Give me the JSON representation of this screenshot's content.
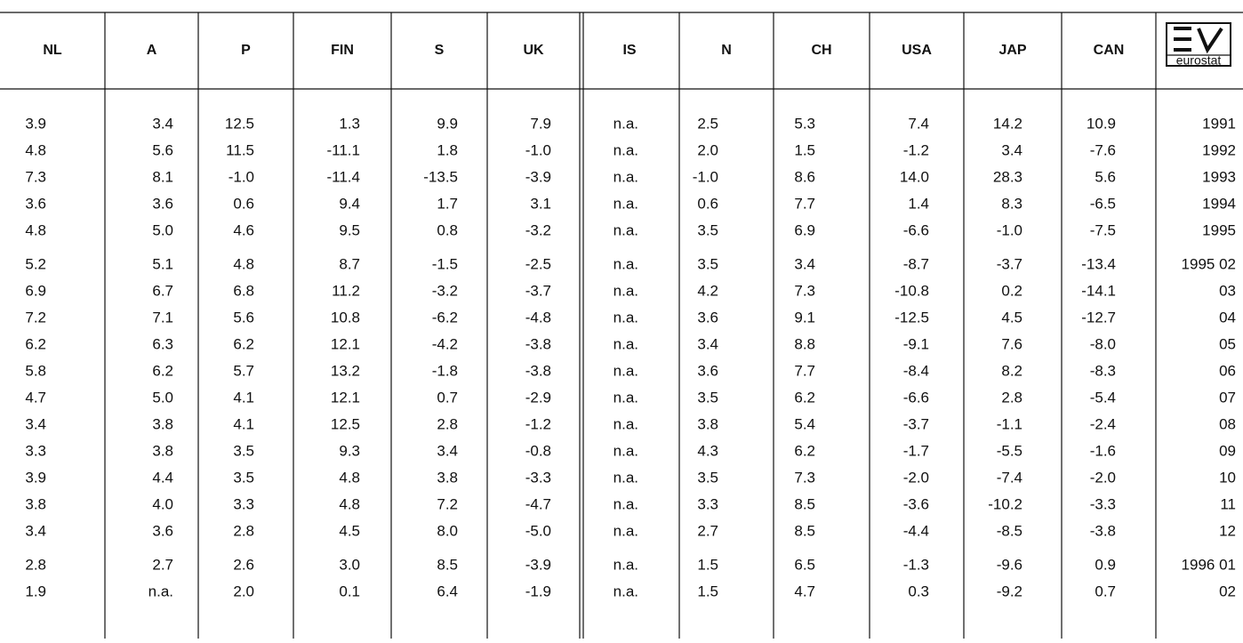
{
  "table": {
    "headers": [
      "NL",
      "A",
      "P",
      "FIN",
      "S",
      "UK",
      "IS",
      "N",
      "CH",
      "USA",
      "JAP",
      "CAN"
    ],
    "logo": "eurostat",
    "groups": [
      5,
      11,
      2
    ],
    "rows": [
      [
        "3.9",
        "3.4",
        "12.5",
        "1.3",
        "9.9",
        "7.9",
        "n.a.",
        "2.5",
        "5.3",
        "7.4",
        "14.2",
        "10.9",
        "1991"
      ],
      [
        "4.8",
        "5.6",
        "11.5",
        "-11.1",
        "1.8",
        "-1.0",
        "n.a.",
        "2.0",
        "1.5",
        "-1.2",
        "3.4",
        "-7.6",
        "1992"
      ],
      [
        "7.3",
        "8.1",
        "-1.0",
        "-11.4",
        "-13.5",
        "-3.9",
        "n.a.",
        "-1.0",
        "8.6",
        "14.0",
        "28.3",
        "5.6",
        "1993"
      ],
      [
        "3.6",
        "3.6",
        "0.6",
        "9.4",
        "1.7",
        "3.1",
        "n.a.",
        "0.6",
        "7.7",
        "1.4",
        "8.3",
        "-6.5",
        "1994"
      ],
      [
        "4.8",
        "5.0",
        "4.6",
        "9.5",
        "0.8",
        "-3.2",
        "n.a.",
        "3.5",
        "6.9",
        "-6.6",
        "-1.0",
        "-7.5",
        "1995"
      ],
      [
        "5.2",
        "5.1",
        "4.8",
        "8.7",
        "-1.5",
        "-2.5",
        "n.a.",
        "3.5",
        "3.4",
        "-8.7",
        "-3.7",
        "-13.4",
        "1995 02"
      ],
      [
        "6.9",
        "6.7",
        "6.8",
        "11.2",
        "-3.2",
        "-3.7",
        "n.a.",
        "4.2",
        "7.3",
        "-10.8",
        "0.2",
        "-14.1",
        "03"
      ],
      [
        "7.2",
        "7.1",
        "5.6",
        "10.8",
        "-6.2",
        "-4.8",
        "n.a.",
        "3.6",
        "9.1",
        "-12.5",
        "4.5",
        "-12.7",
        "04"
      ],
      [
        "6.2",
        "6.3",
        "6.2",
        "12.1",
        "-4.2",
        "-3.8",
        "n.a.",
        "3.4",
        "8.8",
        "-9.1",
        "7.6",
        "-8.0",
        "05"
      ],
      [
        "5.8",
        "6.2",
        "5.7",
        "13.2",
        "-1.8",
        "-3.8",
        "n.a.",
        "3.6",
        "7.7",
        "-8.4",
        "8.2",
        "-8.3",
        "06"
      ],
      [
        "4.7",
        "5.0",
        "4.1",
        "12.1",
        "0.7",
        "-2.9",
        "n.a.",
        "3.5",
        "6.2",
        "-6.6",
        "2.8",
        "-5.4",
        "07"
      ],
      [
        "3.4",
        "3.8",
        "4.1",
        "12.5",
        "2.8",
        "-1.2",
        "n.a.",
        "3.8",
        "5.4",
        "-3.7",
        "-1.1",
        "-2.4",
        "08"
      ],
      [
        "3.3",
        "3.8",
        "3.5",
        "9.3",
        "3.4",
        "-0.8",
        "n.a.",
        "4.3",
        "6.2",
        "-1.7",
        "-5.5",
        "-1.6",
        "09"
      ],
      [
        "3.9",
        "4.4",
        "3.5",
        "4.8",
        "3.8",
        "-3.3",
        "n.a.",
        "3.5",
        "7.3",
        "-2.0",
        "-7.4",
        "-2.0",
        "10"
      ],
      [
        "3.8",
        "4.0",
        "3.3",
        "4.8",
        "7.2",
        "-4.7",
        "n.a.",
        "3.3",
        "8.5",
        "-3.6",
        "-10.2",
        "-3.3",
        "11"
      ],
      [
        "3.4",
        "3.6",
        "2.8",
        "4.5",
        "8.0",
        "-5.0",
        "n.a.",
        "2.7",
        "8.5",
        "-4.4",
        "-8.5",
        "-3.8",
        "12"
      ],
      [
        "2.8",
        "2.7",
        "2.6",
        "3.0",
        "8.5",
        "-3.9",
        "n.a.",
        "1.5",
        "6.5",
        "-1.3",
        "-9.6",
        "0.9",
        "1996 01"
      ],
      [
        "1.9",
        "n.a.",
        "2.0",
        "0.1",
        "6.4",
        "-1.9",
        "n.a.",
        "1.5",
        "4.7",
        "0.3",
        "-9.2",
        "0.7",
        "02"
      ]
    ]
  }
}
